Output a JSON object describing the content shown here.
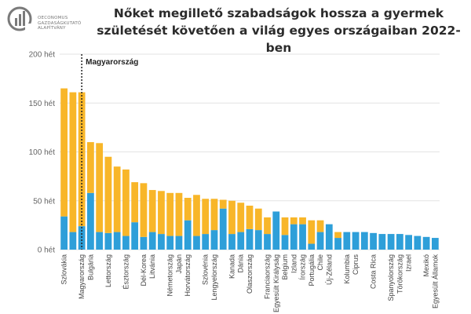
{
  "brand": {
    "logo_text_1": "OECONOMUS",
    "logo_text_2": "GAZDASÁGKUTATÓ",
    "logo_text_3": "ALAPÍTVÁNY",
    "logo_color": "#7a7a7a"
  },
  "chart_data": {
    "type": "bar",
    "title_line1": "Nőket megillető szabadságok hossza a gyermek",
    "title_line2": "születését követően a világ egyes országaiban 2022-ben",
    "y_unit": "hét",
    "ylim": [
      0,
      200
    ],
    "yticks": [
      0,
      50,
      100,
      150,
      200
    ],
    "ytick_labels": [
      "0 hét",
      "50 hét",
      "100 hét",
      "150 hét",
      "200 hét"
    ],
    "grid": true,
    "colors": {
      "blue": "#2e9fd9",
      "orange": "#f8b629",
      "grid": "#e3e3e3",
      "annotation": "#222222"
    },
    "annotation": {
      "category_index": 2,
      "label": "Magyarország"
    },
    "categories": [
      "Szlovákia",
      "",
      "Magyarország",
      "Bulgária",
      "",
      "Lettország",
      "",
      "Észtország",
      "",
      "Dél-Korea",
      "Litvánia",
      "",
      "Németország",
      "Japán",
      "Horvátország",
      "",
      "Szlovénia",
      "Lengyelország",
      "",
      "Kanada",
      "Dánia",
      "Olaszország",
      "",
      "Franciaország",
      "Egyesült Királyság",
      "Belgium",
      "Izland",
      "Írország",
      "Portugália",
      "Chile",
      "Új-Zéland",
      "",
      "Kolumbia",
      "Ciprus",
      "",
      "Costa Rica",
      "",
      "Spanyolország",
      "Törökország",
      "Izrael",
      "",
      "Mexikó",
      "Egyesült Államok"
    ],
    "series": [
      {
        "color_key": "blue",
        "values": [
          34,
          18,
          24,
          58,
          18,
          17,
          18,
          14,
          28,
          13,
          18,
          16,
          14,
          14,
          30,
          14,
          16,
          20,
          42,
          16,
          18,
          21,
          20,
          16,
          39,
          15,
          26,
          26,
          6,
          18,
          26,
          12,
          18,
          18,
          18,
          17,
          16,
          16,
          16,
          15,
          14,
          13,
          12
        ]
      },
      {
        "color_key": "orange",
        "values": [
          131,
          143,
          137,
          52,
          91,
          78,
          67,
          68,
          41,
          55,
          43,
          44,
          44,
          44,
          23,
          42,
          36,
          32,
          9,
          34,
          30,
          24,
          22,
          17,
          0,
          18,
          7,
          7,
          24,
          12,
          0,
          6,
          0,
          0,
          0,
          0,
          0,
          0,
          0,
          0,
          0,
          0,
          0
        ]
      }
    ]
  }
}
